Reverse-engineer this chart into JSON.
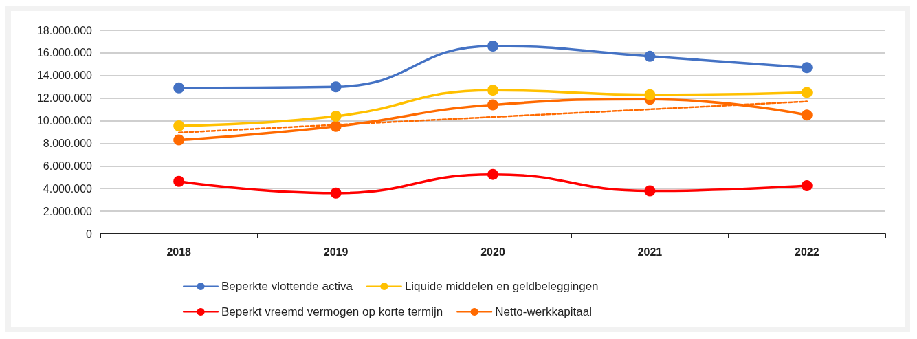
{
  "chart_data": {
    "type": "line",
    "categories": [
      "2018",
      "2019",
      "2020",
      "2021",
      "2022"
    ],
    "series": [
      {
        "name": "Beperkte vlottende activa",
        "color": "#4472c4",
        "values": [
          12900000,
          13000000,
          16600000,
          15700000,
          14700000
        ]
      },
      {
        "name": "Liquide middelen en geldbeleggingen",
        "color": "#ffc000",
        "values": [
          9550000,
          10400000,
          12700000,
          12300000,
          12500000
        ]
      },
      {
        "name": "Beperkt vreemd vermogen op korte termijn",
        "color": "#ff0000",
        "values": [
          4640000,
          3600000,
          5250000,
          3800000,
          4250000
        ]
      },
      {
        "name": "Netto-werkkapitaal",
        "color": "#ff6a00",
        "values": [
          8300000,
          9500000,
          11400000,
          11900000,
          10500000
        ]
      },
      {
        "color": "#ff6a00",
        "values": [
          8950000,
          9640000,
          10330000,
          11010000,
          11700000
        ],
        "line_style": "dashed",
        "marker": "none"
      }
    ],
    "ylim": [
      0,
      18000000
    ],
    "yticks": [
      0,
      {
        "value": 2000000,
        "label": "2.000.000"
      },
      {
        "value": 4000000,
        "label": "4.000.000"
      },
      {
        "value": 6000000,
        "label": "6.000.000"
      },
      {
        "value": 8000000,
        "label": "8.000.000"
      },
      {
        "value": 10000000,
        "label": "10.000.000"
      },
      {
        "value": 12000000,
        "label": "12.000.000"
      },
      {
        "value": 14000000,
        "label": "14.000.000"
      },
      {
        "value": 16000000,
        "label": "16.000.000"
      },
      {
        "value": 18000000,
        "label": "18.000.000"
      }
    ],
    "grid": "y",
    "legend": "bottom",
    "marker": "circle",
    "line_style": "solid"
  }
}
